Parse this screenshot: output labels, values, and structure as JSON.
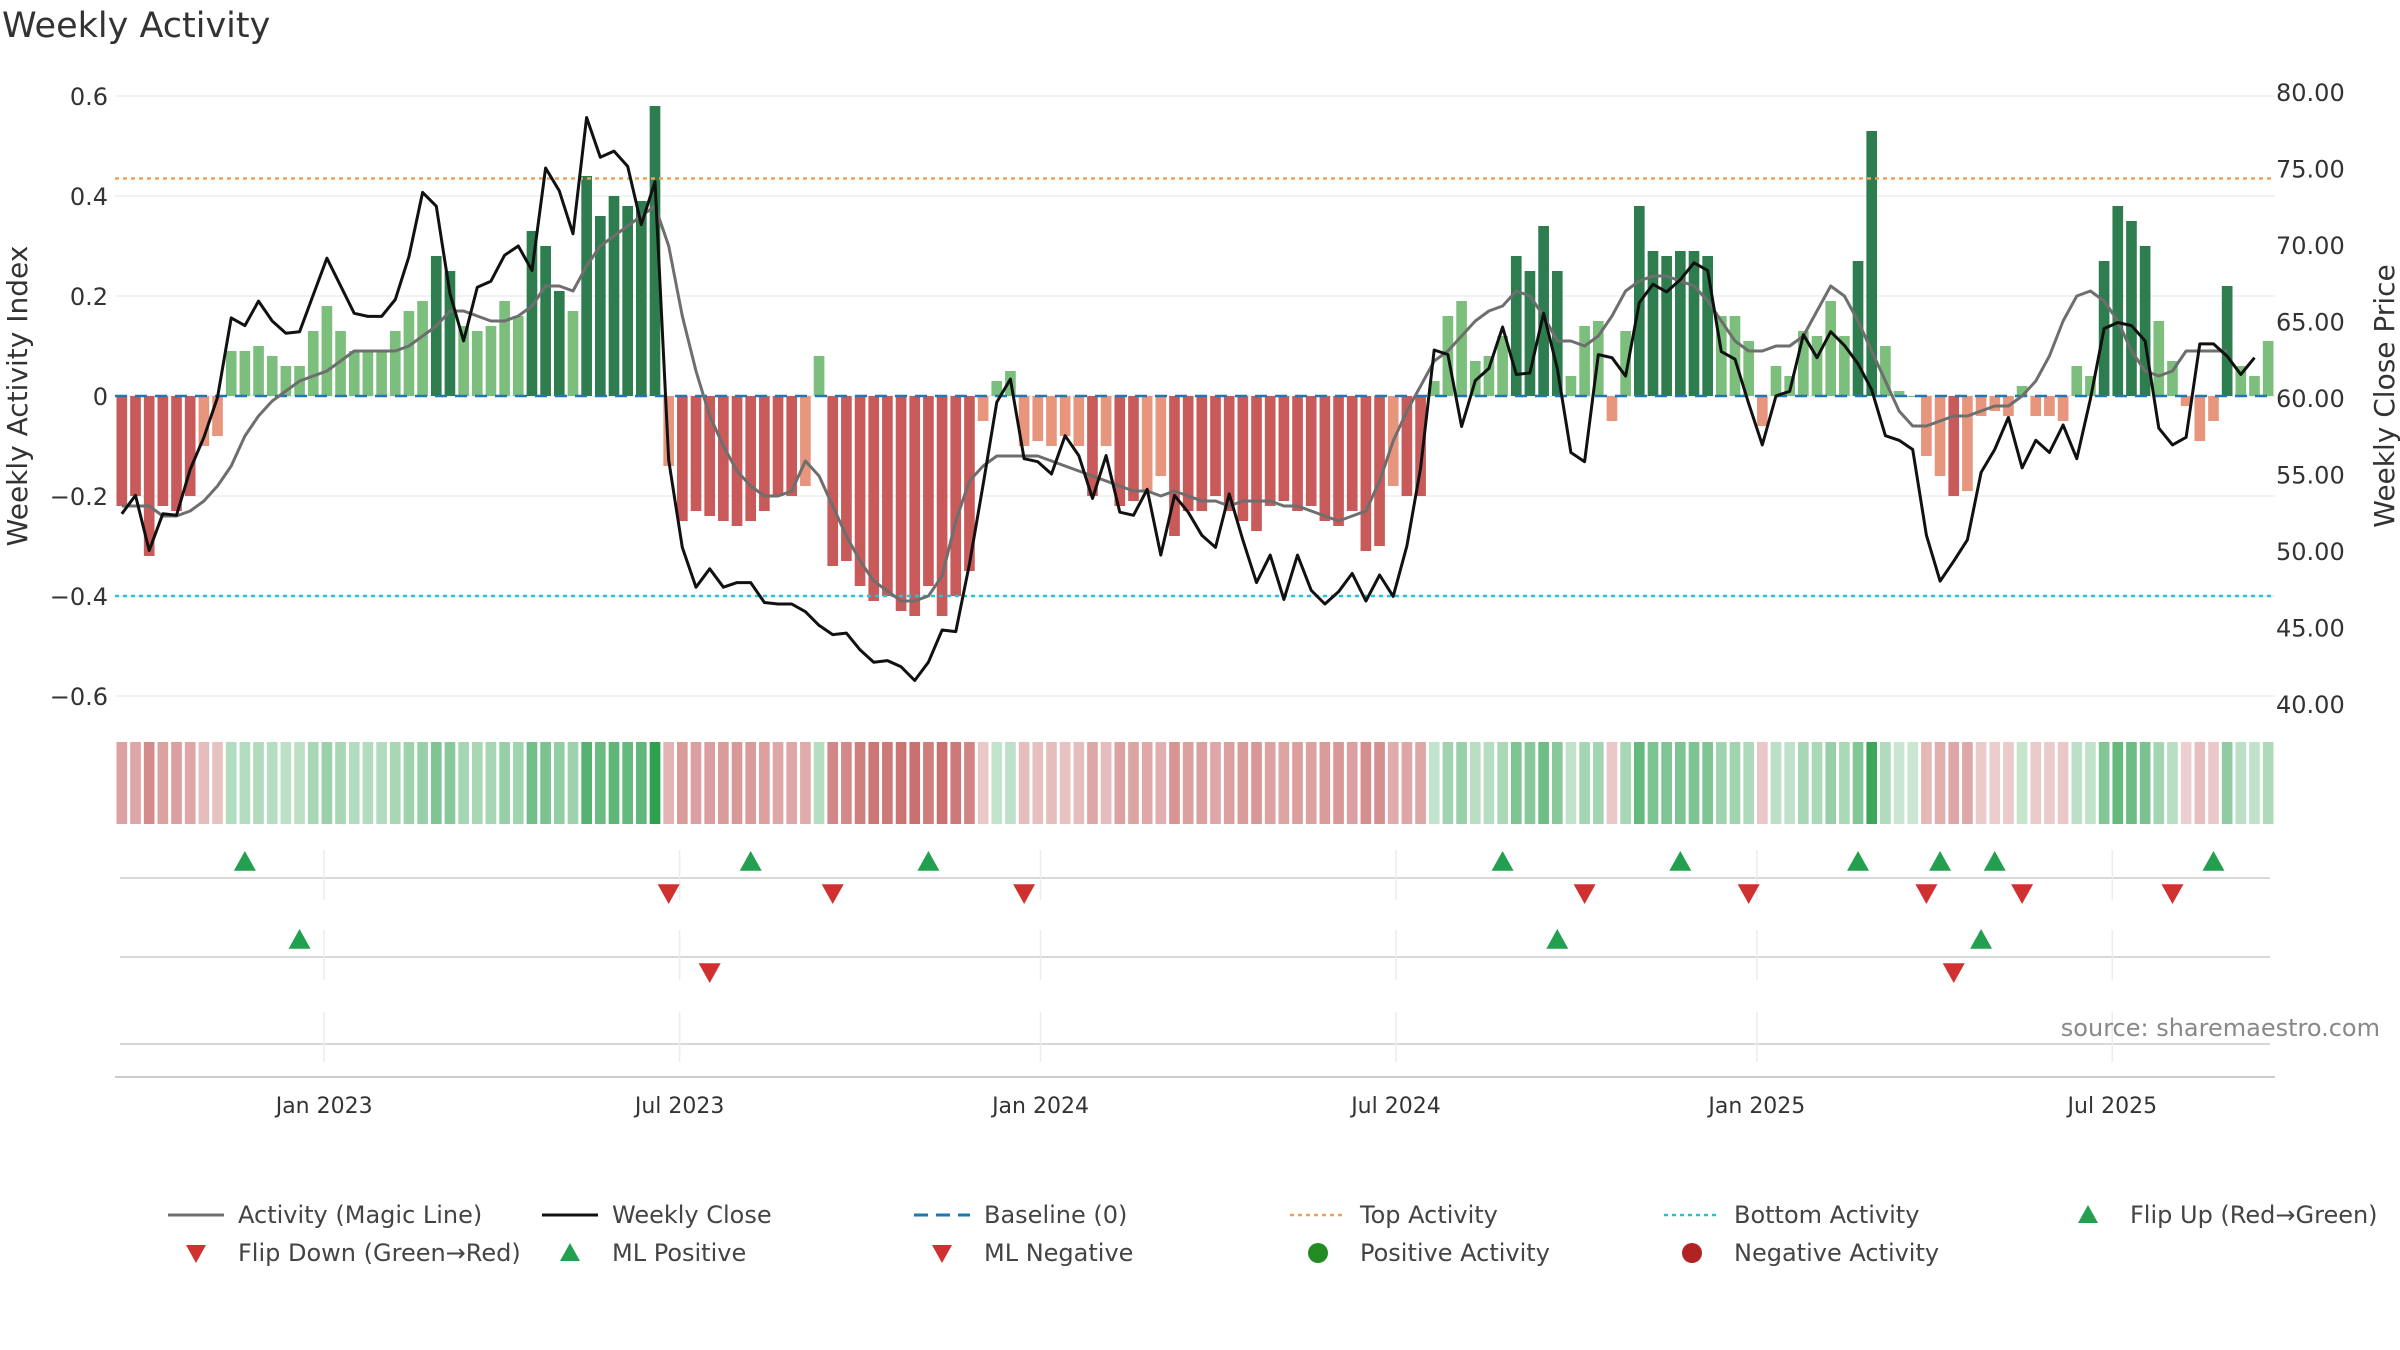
{
  "page_title": "Weekly Activity",
  "source_note": "source: sharemaestro.com",
  "colors": {
    "positive_strong": "#2e7d4f",
    "positive_light": "#7cbf7c",
    "negative_strong": "#c85a5a",
    "negative_light": "#e8957e",
    "magic_line": "#6e6e6e",
    "close_line": "#111111",
    "baseline": "#1f77b4",
    "top_line": "#f0a05a",
    "bottom_line": "#22c5d8",
    "marker_up": "#22a050",
    "marker_down": "#d03030",
    "dot_positive": "#228b22",
    "dot_negative": "#b22222",
    "grid": "#eeeeee"
  },
  "legend": [
    {
      "label": "Activity (Magic Line)",
      "symbol": "line",
      "color": "#6e6e6e"
    },
    {
      "label": "Weekly Close",
      "symbol": "line",
      "color": "#111111"
    },
    {
      "label": "Baseline (0)",
      "symbol": "dash",
      "color": "#1f77b4"
    },
    {
      "label": "Top Activity",
      "symbol": "dot-line",
      "color": "#f0a05a"
    },
    {
      "label": "Bottom Activity",
      "symbol": "dot-line",
      "color": "#22c5d8"
    },
    {
      "label": "Flip Up (Red→Green)",
      "symbol": "tri-up",
      "color": "#22a050"
    },
    {
      "label": "Flip Down (Green→Red)",
      "symbol": "tri-down",
      "color": "#d03030"
    },
    {
      "label": "ML Positive",
      "symbol": "tri-up",
      "color": "#22a050"
    },
    {
      "label": "ML Negative",
      "symbol": "tri-down",
      "color": "#d03030"
    },
    {
      "label": "Positive Activity",
      "symbol": "circle",
      "color": "#228b22"
    },
    {
      "label": "Negative Activity",
      "symbol": "circle",
      "color": "#b22222"
    }
  ],
  "chart_data": {
    "type": "bar",
    "title": "Weekly Activity",
    "ylabel": "Weekly Activity Index",
    "y2label": "Weekly Close Price",
    "ylim": [
      -0.63,
      0.63
    ],
    "y2lim": [
      39.5,
      80.5
    ],
    "yticks": [
      -0.6,
      -0.4,
      -0.2,
      0,
      0.2,
      0.4,
      0.6
    ],
    "ytick_labels": [
      "−0.6",
      "−0.4",
      "−0.2",
      "0",
      "0.2",
      "0.4",
      "0.6"
    ],
    "y2ticks": [
      40,
      45,
      50,
      55,
      60,
      65,
      70,
      75,
      80
    ],
    "y2tick_labels": [
      "40.00",
      "45.00",
      "50.00",
      "55.00",
      "60.00",
      "65.00",
      "70.00",
      "75.00",
      "80.00"
    ],
    "xlim": [
      -0.5,
      157.5
    ],
    "xticks": [
      14.8,
      40.8,
      67.2,
      93.2,
      119.6,
      145.6
    ],
    "xtick_labels": [
      "Jan 2023",
      "Jul 2023",
      "Jan 2024",
      "Jul 2024",
      "Jan 2025",
      "Jul 2025"
    ],
    "top_activity": 0.435,
    "bottom_activity": -0.4,
    "baseline": 0,
    "activity": [
      -0.22,
      -0.2,
      -0.32,
      -0.22,
      -0.23,
      -0.2,
      -0.1,
      -0.08,
      0.09,
      0.09,
      0.1,
      0.08,
      0.06,
      0.06,
      0.13,
      0.18,
      0.13,
      0.09,
      0.09,
      0.09,
      0.13,
      0.17,
      0.19,
      0.28,
      0.25,
      0.14,
      0.13,
      0.14,
      0.19,
      0.16,
      0.33,
      0.3,
      0.21,
      0.17,
      0.44,
      0.36,
      0.4,
      0.38,
      0.39,
      0.58,
      -0.14,
      -0.25,
      -0.23,
      -0.24,
      -0.25,
      -0.26,
      -0.25,
      -0.23,
      -0.2,
      -0.2,
      -0.18,
      0.08,
      -0.34,
      -0.33,
      -0.38,
      -0.41,
      -0.4,
      -0.43,
      -0.44,
      -0.38,
      -0.44,
      -0.4,
      -0.35,
      -0.05,
      0.03,
      0.05,
      -0.1,
      -0.09,
      -0.1,
      -0.08,
      -0.1,
      -0.2,
      -0.1,
      -0.22,
      -0.21,
      -0.19,
      -0.16,
      -0.28,
      -0.23,
      -0.23,
      -0.2,
      -0.23,
      -0.25,
      -0.27,
      -0.22,
      -0.21,
      -0.23,
      -0.22,
      -0.25,
      -0.26,
      -0.23,
      -0.31,
      -0.3,
      -0.18,
      -0.2,
      -0.2,
      0.03,
      0.16,
      0.19,
      0.07,
      0.08,
      0.12,
      0.28,
      0.25,
      0.34,
      0.25,
      0.04,
      0.14,
      0.15,
      -0.05,
      0.13,
      0.38,
      0.29,
      0.28,
      0.29,
      0.29,
      0.28,
      0.16,
      0.16,
      0.11,
      -0.06,
      0.06,
      0.04,
      0.13,
      0.12,
      0.19,
      0.12,
      0.27,
      0.53,
      0.1,
      0.01,
      0,
      -0.12,
      -0.16,
      -0.2,
      -0.19,
      -0.04,
      -0.03,
      -0.04,
      0.02,
      -0.04,
      -0.04,
      -0.05,
      0.06,
      0.04,
      0.27,
      0.38,
      0.35,
      0.3,
      0.15,
      0.07,
      -0.02,
      -0.09,
      -0.05,
      0.22,
      0.06,
      0.04,
      0.11
    ],
    "magic_line": [
      -0.22,
      -0.22,
      -0.22,
      -0.24,
      -0.24,
      -0.23,
      -0.21,
      -0.18,
      -0.14,
      -0.08,
      -0.04,
      -0.01,
      0.01,
      0.03,
      0.04,
      0.05,
      0.07,
      0.09,
      0.09,
      0.09,
      0.09,
      0.1,
      0.12,
      0.14,
      0.17,
      0.17,
      0.16,
      0.15,
      0.15,
      0.16,
      0.18,
      0.22,
      0.22,
      0.21,
      0.26,
      0.3,
      0.32,
      0.34,
      0.36,
      0.38,
      0.3,
      0.16,
      0.05,
      -0.04,
      -0.1,
      -0.15,
      -0.18,
      -0.2,
      -0.2,
      -0.19,
      -0.13,
      -0.16,
      -0.22,
      -0.28,
      -0.33,
      -0.37,
      -0.39,
      -0.41,
      -0.41,
      -0.4,
      -0.36,
      -0.25,
      -0.17,
      -0.14,
      -0.12,
      -0.12,
      -0.12,
      -0.12,
      -0.13,
      -0.14,
      -0.15,
      -0.16,
      -0.17,
      -0.18,
      -0.19,
      -0.19,
      -0.2,
      -0.19,
      -0.2,
      -0.21,
      -0.21,
      -0.22,
      -0.21,
      -0.21,
      -0.21,
      -0.22,
      -0.22,
      -0.23,
      -0.24,
      -0.25,
      -0.24,
      -0.23,
      -0.17,
      -0.09,
      -0.03,
      0.02,
      0.07,
      0.09,
      0.12,
      0.15,
      0.17,
      0.18,
      0.21,
      0.2,
      0.16,
      0.11,
      0.11,
      0.1,
      0.12,
      0.16,
      0.21,
      0.23,
      0.24,
      0.24,
      0.23,
      0.22,
      0.19,
      0.15,
      0.11,
      0.09,
      0.09,
      0.1,
      0.1,
      0.12,
      0.17,
      0.22,
      0.2,
      0.15,
      0.09,
      0.03,
      -0.03,
      -0.06,
      -0.06,
      -0.05,
      -0.04,
      -0.04,
      -0.03,
      -0.02,
      -0.02,
      0,
      0.03,
      0.08,
      0.15,
      0.2,
      0.21,
      0.19,
      0.15,
      0.09,
      0.05,
      0.04,
      0.05,
      0.09,
      0.09,
      0.09,
      0.09
    ],
    "weekly_close": [
      52.5,
      53.7,
      50.1,
      52.5,
      52.4,
      55.4,
      57.5,
      60.1,
      65.3,
      64.8,
      66.4,
      65.1,
      64.3,
      64.4,
      66.8,
      69.2,
      67.4,
      65.6,
      65.4,
      65.4,
      66.5,
      69.3,
      73.5,
      72.6,
      66.9,
      63.8,
      67.3,
      67.7,
      69.4,
      70.0,
      68.4,
      75.1,
      73.6,
      70.8,
      78.4,
      75.8,
      76.2,
      75.2,
      71.4,
      74.2,
      56.0,
      50.3,
      47.7,
      48.9,
      47.7,
      48.0,
      48.0,
      46.7,
      46.6,
      46.6,
      46.1,
      45.2,
      44.6,
      44.7,
      43.6,
      42.8,
      42.9,
      42.5,
      41.6,
      42.8,
      44.9,
      44.8,
      49.2,
      54.4,
      59.8,
      61.3,
      56.1,
      55.9,
      55.1,
      57.6,
      56.3,
      53.5,
      56.3,
      52.6,
      52.4,
      54.1,
      49.8,
      53.7,
      52.6,
      51.1,
      50.3,
      53.8,
      50.8,
      48.0,
      49.8,
      46.9,
      49.8,
      47.5,
      46.6,
      47.4,
      48.6,
      46.8,
      48.5,
      47.1,
      50.4,
      55.5,
      63.2,
      62.9,
      58.2,
      61.2,
      62.0,
      64.7,
      61.6,
      61.7,
      65.6,
      62.0,
      56.5,
      55.9,
      62.9,
      62.7,
      61.5,
      66.3,
      67.5,
      67.0,
      67.8,
      68.9,
      68.4,
      63.1,
      62.6,
      59.7,
      57.0,
      60.2,
      60.5,
      64.2,
      62.7,
      64.4,
      63.5,
      62.3,
      60.6,
      57.6,
      57.3,
      56.7,
      51.1,
      48.1,
      49.4,
      50.8,
      55.2,
      56.7,
      58.8,
      55.5,
      57.3,
      56.5,
      58.3,
      56.1,
      60.0,
      64.6,
      65.0,
      64.8,
      63.8,
      58.1,
      57.0,
      57.5,
      63.6,
      63.6,
      62.8,
      61.6,
      62.7
    ],
    "flip_up": [
      9,
      46,
      59,
      101,
      114,
      127,
      133,
      137,
      153
    ],
    "flip_down": [
      40,
      52,
      66,
      107,
      119,
      132,
      139,
      150
    ],
    "ml_positive": [
      13,
      105,
      136
    ],
    "ml_negative": [
      43,
      134
    ]
  }
}
